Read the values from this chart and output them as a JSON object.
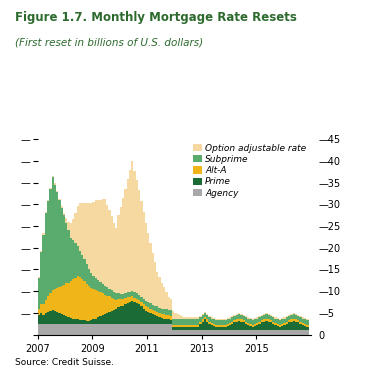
{
  "title": "Figure 1.7. Monthly Mortgage Rate Resets",
  "subtitle": "(First reset in billions of U.S. dollars)",
  "source": "Source: Credit Suisse.",
  "title_color": "#2d6a2d",
  "colors": {
    "option_adjustable": "#f5d9a0",
    "subprime": "#5aab6e",
    "alt_a": "#f0b519",
    "prime": "#1a6b35",
    "agency": "#a8a8a8"
  },
  "legend_labels": [
    "Option adjustable rate",
    "Subprime",
    "Alt-A",
    "Prime",
    "Agency"
  ],
  "ylim": [
    0,
    45
  ],
  "yticks": [
    0,
    5,
    10,
    15,
    20,
    25,
    30,
    35,
    40,
    45
  ],
  "xtick_years": [
    2007,
    2009,
    2011,
    2013,
    2015
  ],
  "data": {
    "months": 120,
    "start_year": 2007,
    "agency": [
      2.5,
      2.5,
      2.5,
      2.5,
      2.5,
      2.5,
      2.5,
      2.5,
      2.5,
      2.5,
      2.5,
      2.5,
      2.5,
      2.5,
      2.5,
      2.5,
      2.5,
      2.5,
      2.5,
      2.5,
      2.5,
      2.5,
      2.5,
      2.5,
      2.5,
      2.5,
      2.5,
      2.5,
      2.5,
      2.5,
      2.5,
      2.5,
      2.5,
      2.5,
      2.5,
      2.5,
      2.5,
      2.5,
      2.5,
      2.5,
      2.5,
      2.5,
      2.5,
      2.5,
      2.5,
      2.5,
      2.5,
      2.5,
      2.5,
      2.5,
      2.5,
      2.5,
      2.5,
      2.5,
      2.5,
      2.5,
      2.5,
      2.5,
      2.5,
      2.5,
      1.0,
      1.0,
      1.0,
      1.0,
      1.0,
      1.0,
      1.0,
      1.0,
      1.0,
      1.0,
      1.0,
      1.0,
      1.0,
      1.0,
      1.0,
      1.0,
      1.0,
      1.0,
      1.0,
      1.0,
      1.0,
      1.0,
      1.0,
      1.0,
      1.0,
      1.0,
      1.0,
      1.0,
      1.0,
      1.0,
      1.0,
      1.0,
      1.0,
      1.0,
      1.0,
      1.0,
      1.0,
      1.0,
      1.0,
      1.0,
      1.0,
      1.0,
      1.0,
      1.0,
      1.0,
      1.0,
      1.0,
      1.0,
      1.0,
      1.0,
      1.0,
      1.0,
      1.0,
      1.0,
      1.0,
      1.0,
      1.0,
      1.0,
      1.0,
      1.0
    ],
    "prime": [
      1.5,
      2.0,
      2.5,
      2.0,
      2.5,
      2.8,
      3.0,
      3.2,
      3.0,
      2.8,
      2.5,
      2.2,
      2.0,
      1.8,
      1.5,
      1.3,
      1.2,
      1.1,
      1.0,
      0.9,
      0.8,
      0.8,
      0.7,
      0.7,
      0.8,
      1.0,
      1.2,
      1.5,
      1.8,
      2.0,
      2.2,
      2.5,
      2.8,
      3.0,
      3.2,
      3.5,
      3.8,
      4.0,
      4.2,
      4.5,
      4.8,
      5.0,
      5.2,
      5.0,
      4.8,
      4.5,
      4.0,
      3.5,
      3.0,
      2.8,
      2.5,
      2.2,
      2.0,
      1.8,
      1.5,
      1.3,
      1.2,
      1.1,
      1.0,
      0.9,
      0.8,
      0.8,
      0.8,
      0.8,
      0.8,
      0.8,
      0.8,
      0.8,
      0.8,
      0.8,
      0.8,
      0.8,
      1.5,
      2.0,
      2.5,
      2.0,
      1.5,
      1.2,
      1.0,
      0.8,
      0.8,
      0.8,
      0.8,
      0.8,
      1.0,
      1.2,
      1.5,
      1.8,
      2.0,
      2.2,
      2.0,
      1.8,
      1.5,
      1.2,
      1.0,
      0.8,
      1.0,
      1.2,
      1.5,
      1.8,
      2.0,
      2.2,
      2.0,
      1.8,
      1.5,
      1.2,
      1.0,
      0.8,
      1.0,
      1.2,
      1.5,
      1.8,
      2.0,
      2.2,
      2.0,
      1.8,
      1.5,
      1.2,
      1.0,
      0.8
    ],
    "alt_a": [
      1.0,
      1.5,
      2.0,
      2.5,
      3.0,
      3.5,
      4.0,
      4.5,
      5.0,
      5.5,
      6.0,
      6.5,
      7.0,
      7.5,
      8.0,
      8.5,
      9.0,
      9.5,
      10.0,
      9.8,
      9.5,
      9.0,
      8.5,
      8.0,
      7.5,
      7.0,
      6.5,
      6.0,
      5.5,
      5.0,
      4.5,
      4.0,
      3.5,
      3.0,
      2.5,
      2.0,
      1.8,
      1.6,
      1.5,
      1.4,
      1.3,
      1.2,
      1.1,
      1.0,
      1.0,
      1.0,
      1.0,
      1.0,
      1.0,
      1.0,
      1.0,
      1.0,
      1.0,
      1.0,
      1.0,
      1.0,
      1.0,
      1.0,
      1.0,
      1.0,
      0.5,
      0.5,
      0.5,
      0.5,
      0.5,
      0.5,
      0.5,
      0.5,
      0.5,
      0.5,
      0.5,
      0.5,
      0.5,
      0.5,
      0.5,
      0.5,
      0.5,
      0.5,
      0.5,
      0.5,
      0.5,
      0.5,
      0.5,
      0.5,
      0.5,
      0.5,
      0.5,
      0.5,
      0.5,
      0.5,
      0.5,
      0.5,
      0.5,
      0.5,
      0.5,
      0.5,
      0.5,
      0.5,
      0.5,
      0.5,
      0.5,
      0.5,
      0.5,
      0.5,
      0.5,
      0.5,
      0.5,
      0.5,
      0.5,
      0.5,
      0.5,
      0.5,
      0.5,
      0.5,
      0.5,
      0.5,
      0.5,
      0.5,
      0.5,
      0.5
    ],
    "subprime": [
      4.0,
      7.0,
      12.0,
      16.0,
      20.0,
      22.0,
      24.0,
      26.0,
      24.0,
      22.0,
      20.0,
      18.0,
      16.0,
      14.0,
      12.0,
      10.0,
      9.0,
      8.0,
      7.0,
      6.0,
      5.5,
      5.0,
      4.5,
      4.0,
      3.5,
      3.0,
      2.8,
      2.5,
      2.3,
      2.2,
      2.0,
      1.9,
      1.8,
      1.7,
      1.6,
      1.5,
      1.4,
      1.3,
      1.2,
      1.2,
      1.2,
      1.2,
      1.2,
      1.2,
      1.2,
      1.2,
      1.2,
      1.2,
      1.2,
      1.2,
      1.2,
      1.2,
      1.2,
      1.2,
      1.2,
      1.2,
      1.2,
      1.2,
      1.2,
      1.2,
      1.2,
      1.2,
      1.2,
      1.2,
      1.2,
      1.2,
      1.2,
      1.2,
      1.2,
      1.2,
      1.2,
      1.2,
      1.0,
      1.0,
      1.0,
      1.0,
      1.0,
      1.0,
      1.0,
      1.0,
      1.0,
      1.0,
      1.0,
      1.0,
      1.0,
      1.0,
      1.0,
      1.0,
      1.0,
      1.0,
      1.0,
      1.0,
      1.0,
      1.0,
      1.0,
      1.0,
      1.0,
      1.0,
      1.0,
      1.0,
      1.0,
      1.0,
      1.0,
      1.0,
      1.0,
      1.0,
      1.0,
      1.0,
      1.0,
      1.0,
      1.0,
      1.0,
      1.0,
      1.0,
      1.0,
      1.0,
      1.0,
      1.0,
      1.0,
      1.0
    ],
    "option_adjustable": [
      0.3,
      0.3,
      0.3,
      0.3,
      0.3,
      0.3,
      0.3,
      0.3,
      0.3,
      0.3,
      0.3,
      0.3,
      0.5,
      1.0,
      2.0,
      3.5,
      5.0,
      7.0,
      9.0,
      11.0,
      12.0,
      13.0,
      14.0,
      15.0,
      16.0,
      17.0,
      18.0,
      18.5,
      19.0,
      19.5,
      20.0,
      19.0,
      18.0,
      17.0,
      16.0,
      15.0,
      18.0,
      20.0,
      22.0,
      24.0,
      26.0,
      28.0,
      30.0,
      28.0,
      26.0,
      24.0,
      22.0,
      20.0,
      18.0,
      16.0,
      14.0,
      12.0,
      10.0,
      8.0,
      7.0,
      6.0,
      5.0,
      4.0,
      3.0,
      2.5,
      2.0,
      1.5,
      1.2,
      1.0,
      0.8,
      0.6,
      0.5,
      0.5,
      0.5,
      0.5,
      0.5,
      0.5,
      0.3,
      0.3,
      0.3,
      0.3,
      0.3,
      0.3,
      0.3,
      0.3,
      0.3,
      0.3,
      0.3,
      0.3,
      0.3,
      0.3,
      0.3,
      0.3,
      0.3,
      0.3,
      0.3,
      0.3,
      0.3,
      0.3,
      0.3,
      0.3,
      0.3,
      0.3,
      0.3,
      0.3,
      0.3,
      0.3,
      0.3,
      0.3,
      0.3,
      0.3,
      0.3,
      0.3,
      0.3,
      0.3,
      0.3,
      0.3,
      0.3,
      0.3,
      0.3,
      0.3,
      0.3,
      0.3,
      0.3,
      0.3
    ]
  }
}
